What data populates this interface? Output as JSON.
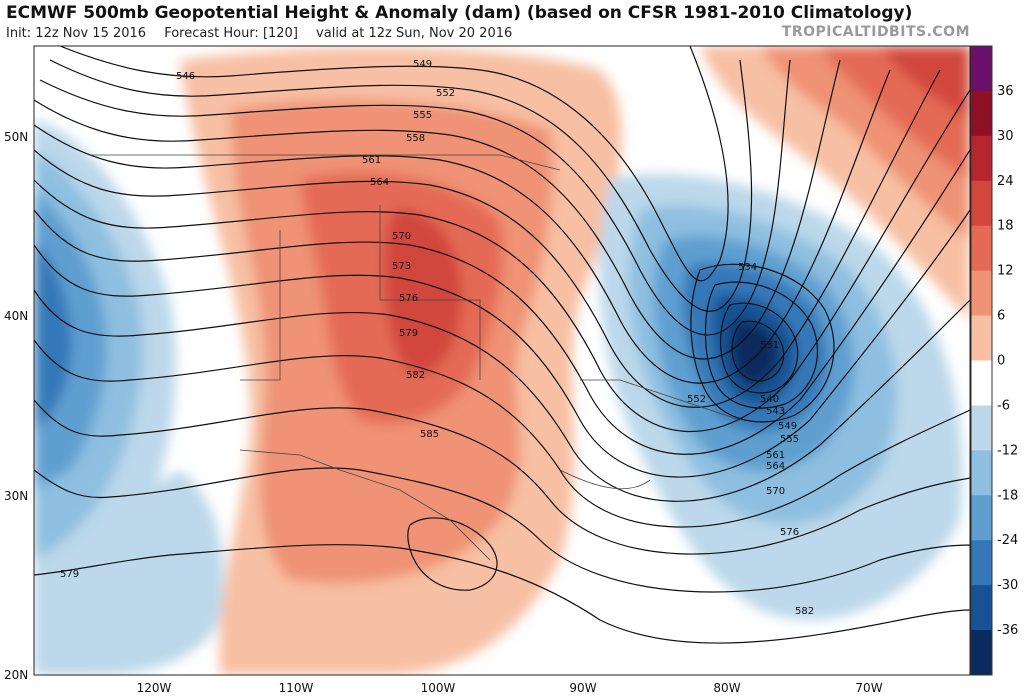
{
  "header": {
    "title": "ECMWF 500mb Geopotential Height & Anomaly (dam) (based on CFSR 1981-2010 Climatology)",
    "init": "Init: 12z Nov 15 2016",
    "forecast_hour": "Forecast Hour: [120]",
    "valid": "valid at 12z Sun, Nov 20 2016",
    "brand": "TROPICALTIDBITS.COM"
  },
  "map": {
    "lat_ticks": [
      "50N",
      "40N",
      "30N",
      "20N"
    ],
    "lon_ticks": [
      "120W",
      "110W",
      "100W",
      "90W",
      "80W",
      "70W"
    ],
    "contour_labels": [
      "546",
      "549",
      "552",
      "555",
      "558",
      "561",
      "564",
      "570",
      "573",
      "576",
      "579",
      "582",
      "585",
      "534",
      "531",
      "540",
      "543",
      "549",
      "555",
      "561",
      "564",
      "570",
      "576",
      "582",
      "552",
      "579"
    ],
    "colors": {
      "ridge": "#e46a45",
      "trough": "#1f5fa3",
      "deep_trough": "#0b2a5f"
    }
  },
  "colorbar": {
    "labels": [
      "36",
      "30",
      "24",
      "18",
      "12",
      "6",
      "0",
      "-6",
      "-12",
      "-18",
      "-24",
      "-30",
      "-36"
    ],
    "colors": [
      "#6a0f6a",
      "#8e1024",
      "#b5262e",
      "#d2473c",
      "#e46a54",
      "#ef9275",
      "#f7bfa3",
      "#ffffff",
      "#bcd8ea",
      "#8ebfe0",
      "#5e9fd0",
      "#3478b8",
      "#175394",
      "#0b2a5f"
    ]
  }
}
